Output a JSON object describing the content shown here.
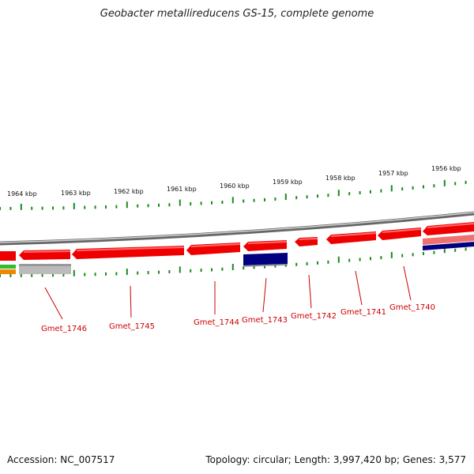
{
  "title": "Geobacter metallireducens GS-15, complete genome",
  "footer": {
    "accession": "Accession: NC_007517",
    "summary": "Topology: circular; Length: 3,997,420 bp; Genes: 3,577"
  },
  "scale_labels": [
    "1964 kbp",
    "1963 kbp",
    "1962 kbp",
    "1961 kbp",
    "1960 kbp",
    "1959 kbp",
    "1958 kbp",
    "1957 kbp",
    "1956 kbp"
  ],
  "gene_labels": [
    "Gmet_1746",
    "Gmet_1745",
    "Gmet_1744",
    "Gmet_1743",
    "Gmet_1742",
    "Gmet_1741",
    "Gmet_1740"
  ],
  "colors": {
    "cds": "#ee0000",
    "cds_light": "#f07070",
    "navy": "#000080",
    "backbone": "#888888",
    "ticks": "#1a8a1a",
    "green": "#33bb33",
    "orange": "#ee8800",
    "grey": "#bbbbbb",
    "label": "#cc0000"
  }
}
